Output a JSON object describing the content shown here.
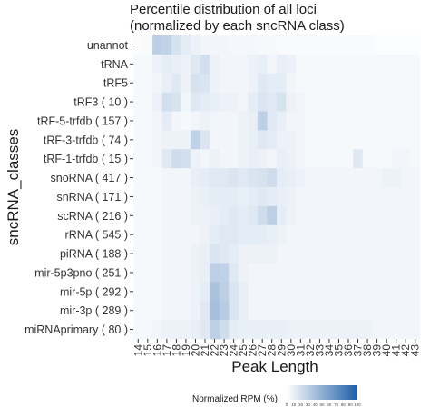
{
  "chart_data": {
    "type": "heatmap",
    "title_lines": [
      "Percentile distribution of all loci",
      "(normalized by each sncRNA class)"
    ],
    "xlabel": "Peak Length",
    "ylabel": "sncRNA_classes",
    "x": [
      "14",
      "15",
      "16",
      "17",
      "18",
      "19",
      "20",
      "21",
      "22",
      "23",
      "24",
      "25",
      "26",
      "27",
      "28",
      "29",
      "30",
      "31",
      "32",
      "33",
      "34",
      "35",
      "36",
      "37",
      "38",
      "39",
      "40",
      "41",
      "42",
      "43"
    ],
    "y": [
      "unannot",
      "tRNA",
      "tRF5",
      "tRF3 ( 10 )",
      "tRF-5-trfdb ( 157 )",
      "tRF-3-trfdb ( 74 )",
      "tRF-1-trfdb ( 15 )",
      "snoRNA ( 417 )",
      "snRNA ( 171 )",
      "scRNA ( 216 )",
      "rRNA ( 545 )",
      "piRNA ( 188 )",
      "mir-5p3pno ( 251 )",
      "mir-5p ( 292 )",
      "mir-3p ( 289 )",
      "miRNAprimary ( 80 )"
    ],
    "values": [
      [
        2,
        3,
        30,
        28,
        18,
        12,
        8,
        6,
        6,
        6,
        5,
        5,
        5,
        4,
        4,
        3,
        3,
        3,
        3,
        3,
        3,
        3,
        3,
        3,
        3,
        2,
        2,
        2,
        2,
        2
      ],
      [
        4,
        4,
        8,
        12,
        10,
        8,
        14,
        20,
        8,
        6,
        6,
        6,
        8,
        10,
        6,
        10,
        8,
        4,
        4,
        4,
        4,
        4,
        4,
        4,
        4,
        4,
        4,
        4,
        4,
        4
      ],
      [
        4,
        4,
        6,
        10,
        14,
        8,
        18,
        16,
        8,
        6,
        6,
        6,
        8,
        14,
        12,
        12,
        6,
        4,
        4,
        4,
        4,
        4,
        4,
        4,
        4,
        4,
        4,
        4,
        4,
        4
      ],
      [
        4,
        4,
        8,
        20,
        18,
        6,
        14,
        12,
        10,
        8,
        8,
        6,
        12,
        16,
        14,
        18,
        8,
        6,
        4,
        4,
        4,
        4,
        4,
        4,
        4,
        4,
        4,
        4,
        4,
        4
      ],
      [
        4,
        4,
        6,
        12,
        6,
        4,
        6,
        8,
        6,
        6,
        6,
        8,
        10,
        30,
        14,
        10,
        6,
        6,
        4,
        4,
        4,
        4,
        4,
        4,
        4,
        4,
        4,
        4,
        4,
        4
      ],
      [
        4,
        4,
        6,
        8,
        8,
        8,
        28,
        16,
        6,
        6,
        6,
        8,
        10,
        14,
        12,
        8,
        8,
        6,
        4,
        4,
        4,
        4,
        4,
        4,
        4,
        4,
        4,
        4,
        4,
        4
      ],
      [
        4,
        4,
        6,
        14,
        22,
        20,
        8,
        6,
        8,
        6,
        6,
        8,
        10,
        8,
        6,
        10,
        8,
        6,
        4,
        4,
        4,
        4,
        4,
        14,
        4,
        4,
        4,
        6,
        6,
        4
      ],
      [
        4,
        4,
        4,
        6,
        6,
        6,
        10,
        12,
        14,
        14,
        16,
        14,
        16,
        18,
        22,
        12,
        10,
        8,
        6,
        6,
        6,
        6,
        6,
        6,
        6,
        6,
        8,
        8,
        6,
        6
      ],
      [
        4,
        4,
        4,
        6,
        6,
        6,
        8,
        10,
        12,
        12,
        12,
        10,
        12,
        14,
        12,
        10,
        8,
        6,
        6,
        6,
        6,
        6,
        6,
        6,
        6,
        6,
        6,
        6,
        6,
        6
      ],
      [
        4,
        4,
        4,
        6,
        6,
        6,
        8,
        8,
        10,
        12,
        14,
        12,
        14,
        22,
        30,
        12,
        8,
        6,
        6,
        6,
        6,
        6,
        6,
        6,
        6,
        6,
        6,
        6,
        6,
        6
      ],
      [
        4,
        4,
        4,
        6,
        6,
        6,
        6,
        8,
        12,
        14,
        14,
        12,
        12,
        12,
        10,
        8,
        6,
        6,
        6,
        6,
        6,
        6,
        6,
        6,
        6,
        6,
        6,
        6,
        6,
        6
      ],
      [
        4,
        4,
        4,
        6,
        6,
        6,
        8,
        10,
        16,
        14,
        12,
        8,
        8,
        8,
        8,
        6,
        6,
        6,
        6,
        6,
        6,
        6,
        6,
        6,
        6,
        6,
        6,
        6,
        6,
        6
      ],
      [
        4,
        4,
        4,
        6,
        6,
        6,
        8,
        10,
        30,
        28,
        14,
        8,
        6,
        6,
        6,
        6,
        6,
        6,
        6,
        6,
        6,
        6,
        6,
        6,
        6,
        6,
        6,
        6,
        6,
        6
      ],
      [
        4,
        4,
        4,
        6,
        6,
        6,
        8,
        12,
        38,
        30,
        16,
        10,
        6,
        6,
        6,
        6,
        6,
        6,
        6,
        6,
        6,
        6,
        6,
        6,
        6,
        6,
        6,
        6,
        6,
        6
      ],
      [
        4,
        4,
        4,
        6,
        6,
        6,
        8,
        14,
        40,
        32,
        16,
        10,
        6,
        6,
        6,
        6,
        6,
        6,
        6,
        6,
        6,
        6,
        6,
        6,
        6,
        6,
        6,
        6,
        6,
        6
      ],
      [
        4,
        4,
        6,
        8,
        8,
        8,
        10,
        14,
        30,
        22,
        12,
        10,
        10,
        10,
        10,
        10,
        8,
        8,
        8,
        8,
        8,
        8,
        8,
        8,
        8,
        6,
        6,
        6,
        6,
        6
      ]
    ],
    "colorbar": {
      "label": "Normalized RPM (%)",
      "ticks": [
        "0",
        "10",
        "20",
        "30",
        "40",
        "50",
        "60",
        "70",
        "80",
        "90",
        "100"
      ],
      "range": [
        0,
        100
      ],
      "low_color": "#ffffff",
      "high_color": "#1f5fa8"
    }
  }
}
